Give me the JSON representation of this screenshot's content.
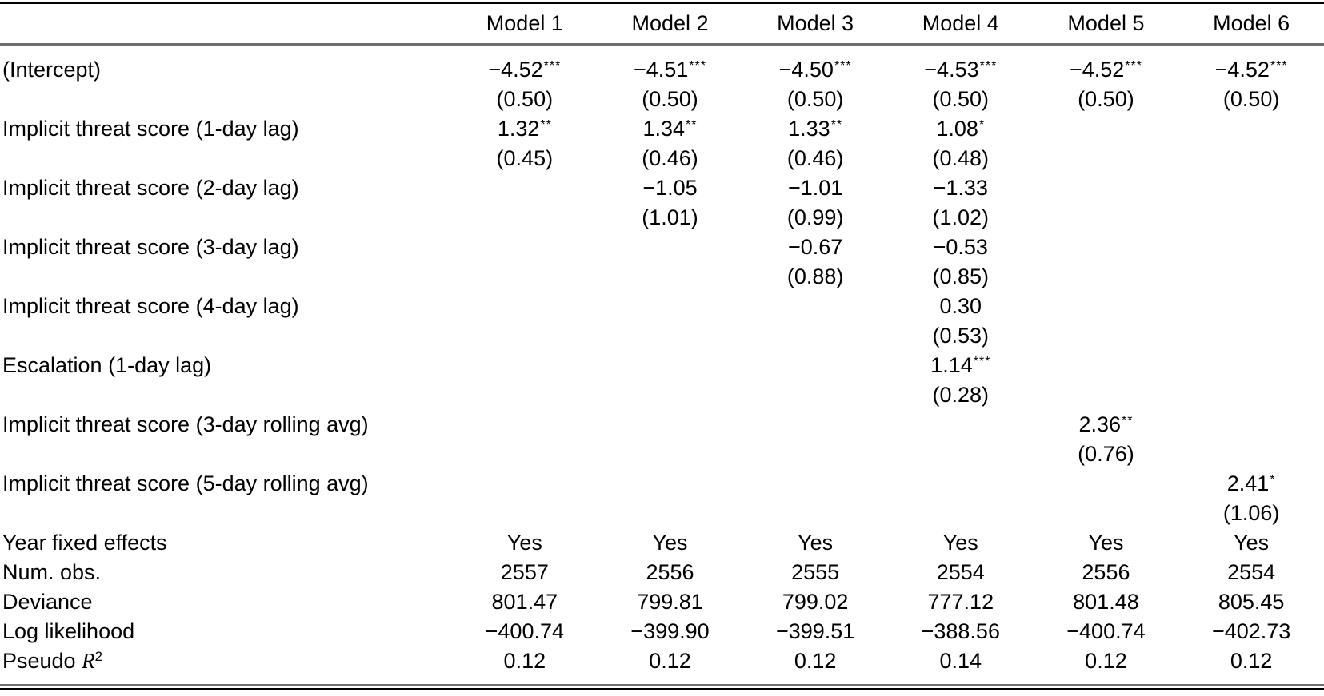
{
  "page": {
    "background_color": "#ffffff",
    "text_color": "#000000",
    "rule_color_dark": "#000000",
    "rule_color_gray": "#6e6e6e"
  },
  "table": {
    "models": [
      "Model 1",
      "Model 2",
      "Model 3",
      "Model 4",
      "Model 5",
      "Model 6"
    ],
    "coefficient_rows": [
      {
        "label": "(Intercept)",
        "cells": [
          {
            "est": "−4.52",
            "stars": "***",
            "se": "(0.50)"
          },
          {
            "est": "−4.51",
            "stars": "***",
            "se": "(0.50)"
          },
          {
            "est": "−4.50",
            "stars": "***",
            "se": "(0.50)"
          },
          {
            "est": "−4.53",
            "stars": "***",
            "se": "(0.50)"
          },
          {
            "est": "−4.52",
            "stars": "***",
            "se": "(0.50)"
          },
          {
            "est": "−4.52",
            "stars": "***",
            "se": "(0.50)"
          }
        ]
      },
      {
        "label": "Implicit threat score (1-day lag)",
        "cells": [
          {
            "est": "1.32",
            "stars": "**",
            "se": "(0.45)"
          },
          {
            "est": "1.34",
            "stars": "**",
            "se": "(0.46)"
          },
          {
            "est": "1.33",
            "stars": "**",
            "se": "(0.46)"
          },
          {
            "est": "1.08",
            "stars": "*",
            "se": "(0.48)"
          },
          null,
          null
        ]
      },
      {
        "label": "Implicit threat score (2-day lag)",
        "cells": [
          null,
          {
            "est": "−1.05",
            "stars": "",
            "se": "(1.01)"
          },
          {
            "est": "−1.01",
            "stars": "",
            "se": "(0.99)"
          },
          {
            "est": "−1.33",
            "stars": "",
            "se": "(1.02)"
          },
          null,
          null
        ]
      },
      {
        "label": "Implicit threat score (3-day lag)",
        "cells": [
          null,
          null,
          {
            "est": "−0.67",
            "stars": "",
            "se": "(0.88)"
          },
          {
            "est": "−0.53",
            "stars": "",
            "se": "(0.85)"
          },
          null,
          null
        ]
      },
      {
        "label": "Implicit threat score (4-day lag)",
        "cells": [
          null,
          null,
          null,
          {
            "est": "0.30",
            "stars": "",
            "se": "(0.53)"
          },
          null,
          null
        ]
      },
      {
        "label": "Escalation (1-day lag)",
        "cells": [
          null,
          null,
          null,
          {
            "est": "1.14",
            "stars": "***",
            "se": "(0.28)"
          },
          null,
          null
        ]
      },
      {
        "label": "Implicit threat score (3-day rolling avg)",
        "cells": [
          null,
          null,
          null,
          null,
          {
            "est": "2.36",
            "stars": "**",
            "se": "(0.76)"
          },
          null
        ]
      },
      {
        "label": "Implicit threat score (5-day rolling avg)",
        "cells": [
          null,
          null,
          null,
          null,
          null,
          {
            "est": "2.41",
            "stars": "*",
            "se": "(1.06)"
          }
        ]
      }
    ],
    "gof_rows": [
      {
        "label": "Year fixed effects",
        "values": [
          "Yes",
          "Yes",
          "Yes",
          "Yes",
          "Yes",
          "Yes"
        ]
      },
      {
        "label": "Num. obs.",
        "values": [
          "2557",
          "2556",
          "2555",
          "2554",
          "2556",
          "2554"
        ]
      },
      {
        "label": "Deviance",
        "values": [
          "801.47",
          "799.81",
          "799.02",
          "777.12",
          "801.48",
          "805.45"
        ]
      },
      {
        "label": "Log likelihood",
        "values": [
          "−400.74",
          "−399.90",
          "−399.51",
          "−388.56",
          "−400.74",
          "−402.73"
        ]
      },
      {
        "label": "Pseudo R2",
        "label_parts": {
          "prefix": "Pseudo ",
          "italic": "R",
          "sup": "2"
        },
        "values": [
          "0.12",
          "0.12",
          "0.12",
          "0.14",
          "0.12",
          "0.12"
        ]
      }
    ]
  }
}
